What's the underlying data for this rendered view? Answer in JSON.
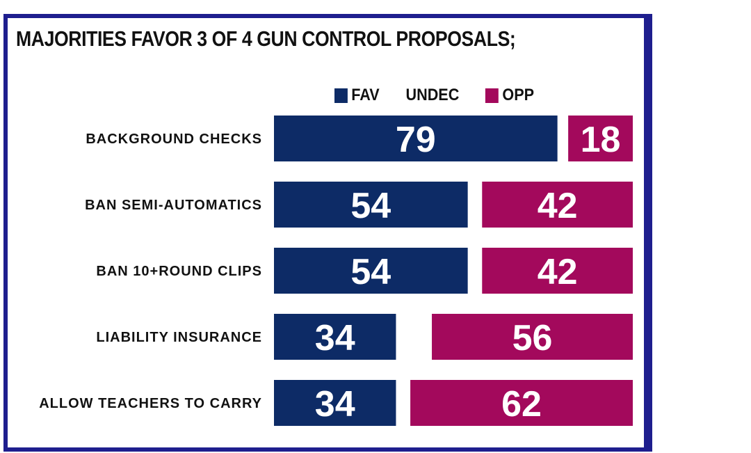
{
  "chart_data": {
    "type": "bar",
    "orientation": "horizontal",
    "stacked": true,
    "title": "MAJORITIES FAVOR 3 OF 4 GUN CONTROL PROPOSALS;",
    "categories": [
      "BACKGROUND CHECKS",
      "BAN SEMI-AUTOMATICS",
      "BAN 10+ROUND CLIPS",
      "LIABILITY INSURANCE",
      "ALLOW TEACHERS TO CARRY"
    ],
    "series": [
      {
        "name": "FAV",
        "values": [
          79,
          54,
          54,
          34,
          34
        ],
        "color": "#0d2b66"
      },
      {
        "name": "UNDEC",
        "values": [
          3,
          4,
          4,
          10,
          4
        ],
        "color": "#ffffff"
      },
      {
        "name": "OPP",
        "values": [
          18,
          42,
          42,
          56,
          62
        ],
        "color": "#a3095c"
      }
    ],
    "data_labels": [
      [
        "79",
        "18"
      ],
      [
        "54",
        "42"
      ],
      [
        "54",
        "42"
      ],
      [
        "34",
        "56"
      ],
      [
        "34",
        "62"
      ]
    ],
    "xlim": [
      0,
      100
    ],
    "legend": "top",
    "grid": false
  }
}
